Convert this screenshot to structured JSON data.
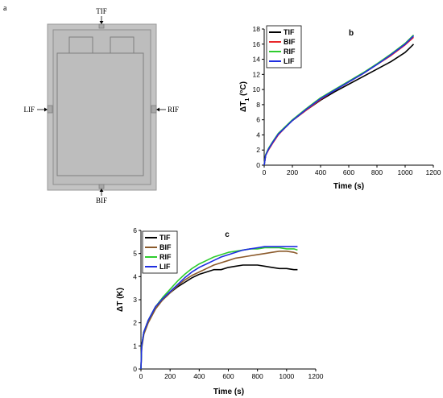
{
  "panel_a": {
    "letter": "a",
    "labels": {
      "top": "TIF",
      "left": "LIF",
      "right": "RIF",
      "bottom": "BIF"
    }
  },
  "chart_data": [
    {
      "panel": "b",
      "type": "line",
      "xlabel": "Time (s)",
      "ylabel_main": "ΔT",
      "ylabel_sub": "1",
      "ylabel_tail": " (°C)",
      "xlim": [
        0,
        1200
      ],
      "ylim": [
        0,
        18
      ],
      "xticks": [
        0,
        200,
        400,
        600,
        800,
        1000,
        1200
      ],
      "yticks": [
        0,
        2,
        4,
        6,
        8,
        10,
        12,
        14,
        16,
        18
      ],
      "legend_position": "top-left",
      "series": [
        {
          "name": "TIF",
          "color": "#000000",
          "x": [
            0,
            10,
            30,
            60,
            100,
            150,
            200,
            300,
            400,
            500,
            600,
            700,
            800,
            900,
            1000,
            1060
          ],
          "y": [
            0,
            1.3,
            2.1,
            3.0,
            4.1,
            5.0,
            5.9,
            7.3,
            8.6,
            9.7,
            10.7,
            11.7,
            12.7,
            13.7,
            14.9,
            16.0
          ]
        },
        {
          "name": "BIF",
          "color": "#e8272a",
          "x": [
            0,
            10,
            30,
            60,
            100,
            150,
            200,
            300,
            400,
            500,
            600,
            700,
            800,
            900,
            1000,
            1060
          ],
          "y": [
            0,
            1.3,
            2.0,
            2.9,
            4.0,
            5.0,
            5.9,
            7.3,
            8.7,
            9.9,
            11.0,
            12.1,
            13.3,
            14.5,
            15.9,
            16.9
          ]
        },
        {
          "name": "RIF",
          "color": "#2ecc2e",
          "x": [
            0,
            10,
            30,
            60,
            100,
            150,
            200,
            300,
            400,
            500,
            600,
            700,
            800,
            900,
            1000,
            1060
          ],
          "y": [
            0,
            1.4,
            2.2,
            3.1,
            4.2,
            5.1,
            6.0,
            7.5,
            8.9,
            10.0,
            11.1,
            12.2,
            13.4,
            14.7,
            16.1,
            17.2
          ]
        },
        {
          "name": "LIF",
          "color": "#1f2ee0",
          "x": [
            0,
            10,
            30,
            60,
            100,
            150,
            200,
            300,
            400,
            500,
            600,
            700,
            800,
            900,
            1000,
            1060
          ],
          "y": [
            0,
            1.3,
            2.1,
            3.0,
            4.1,
            5.0,
            5.9,
            7.4,
            8.8,
            9.9,
            11.0,
            12.1,
            13.3,
            14.6,
            16.0,
            17.1
          ]
        }
      ]
    },
    {
      "panel": "c",
      "type": "line",
      "xlabel": "Time (s)",
      "ylabel_main": "ΔT (K)",
      "xlim": [
        0,
        1200
      ],
      "ylim": [
        0,
        6
      ],
      "xticks": [
        0,
        200,
        400,
        600,
        800,
        1000,
        1200
      ],
      "yticks": [
        0,
        1,
        2,
        3,
        4,
        5,
        6
      ],
      "legend_position": "top-left",
      "series": [
        {
          "name": "TIF",
          "color": "#000000",
          "x": [
            0,
            5,
            20,
            50,
            100,
            150,
            200,
            250,
            300,
            350,
            400,
            450,
            500,
            550,
            600,
            650,
            700,
            750,
            800,
            850,
            900,
            950,
            1000,
            1050,
            1075
          ],
          "y": [
            0,
            1.0,
            1.6,
            2.1,
            2.7,
            3.0,
            3.3,
            3.55,
            3.75,
            3.95,
            4.1,
            4.2,
            4.3,
            4.3,
            4.4,
            4.45,
            4.5,
            4.5,
            4.5,
            4.45,
            4.4,
            4.35,
            4.35,
            4.3,
            4.3
          ]
        },
        {
          "name": "BIF",
          "color": "#8b5a2b",
          "x": [
            0,
            5,
            20,
            50,
            100,
            150,
            200,
            250,
            300,
            350,
            400,
            450,
            500,
            550,
            600,
            650,
            700,
            750,
            800,
            850,
            900,
            950,
            1000,
            1050,
            1075
          ],
          "y": [
            0,
            0.9,
            1.5,
            2.0,
            2.6,
            3.0,
            3.3,
            3.6,
            3.85,
            4.05,
            4.2,
            4.35,
            4.5,
            4.6,
            4.7,
            4.8,
            4.85,
            4.9,
            4.95,
            5.0,
            5.05,
            5.1,
            5.1,
            5.05,
            5.0
          ]
        },
        {
          "name": "RIF",
          "color": "#2ecc2e",
          "x": [
            0,
            5,
            20,
            50,
            100,
            150,
            200,
            250,
            300,
            350,
            400,
            450,
            500,
            550,
            600,
            650,
            700,
            750,
            800,
            850,
            900,
            950,
            1000,
            1050,
            1075
          ],
          "y": [
            0,
            1.0,
            1.6,
            2.1,
            2.7,
            3.1,
            3.45,
            3.8,
            4.1,
            4.35,
            4.55,
            4.7,
            4.85,
            4.95,
            5.05,
            5.1,
            5.15,
            5.2,
            5.2,
            5.25,
            5.25,
            5.25,
            5.2,
            5.2,
            5.15
          ]
        },
        {
          "name": "LIF",
          "color": "#1f2ee0",
          "x": [
            0,
            5,
            20,
            50,
            100,
            150,
            200,
            250,
            300,
            350,
            400,
            450,
            500,
            550,
            600,
            650,
            700,
            750,
            800,
            850,
            900,
            950,
            1000,
            1050,
            1075
          ],
          "y": [
            0,
            1.0,
            1.6,
            2.1,
            2.7,
            3.05,
            3.35,
            3.65,
            3.95,
            4.2,
            4.4,
            4.55,
            4.7,
            4.85,
            4.95,
            5.05,
            5.15,
            5.2,
            5.25,
            5.3,
            5.3,
            5.3,
            5.3,
            5.3,
            5.3
          ]
        }
      ]
    }
  ]
}
